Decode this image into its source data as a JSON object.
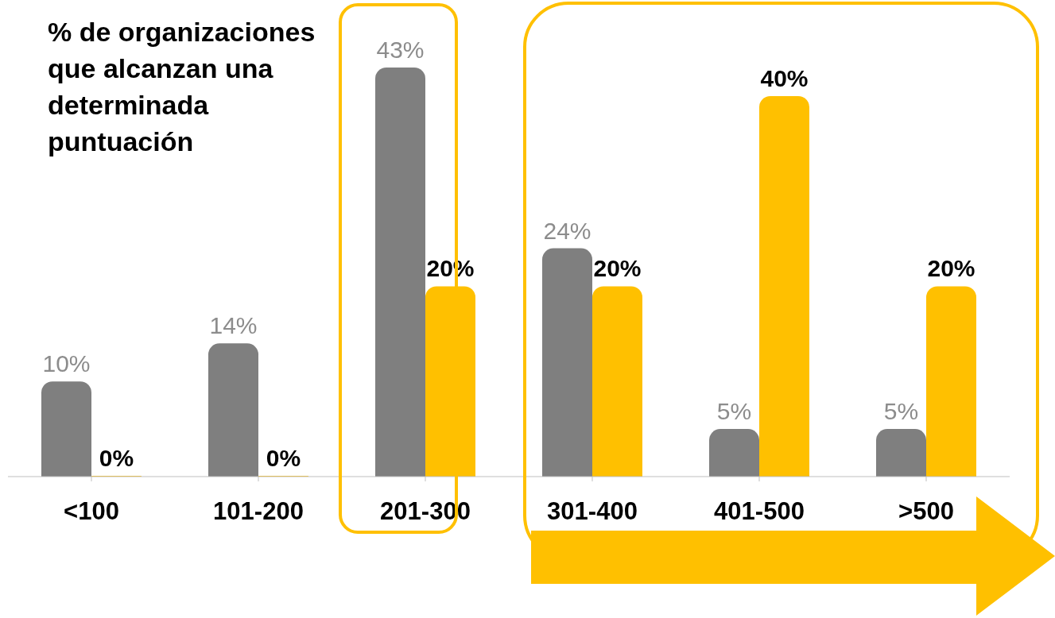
{
  "chart_data": {
    "type": "bar",
    "title": "% de organizaciones que alcanzan una determinada puntuación",
    "categories": [
      "<100",
      "101-200",
      "201-300",
      "301-400",
      "401-500",
      ">500"
    ],
    "series": [
      {
        "color": "#7f7f7f",
        "values": [
          10,
          14,
          43,
          24,
          5,
          5
        ],
        "value_labels": [
          "10%",
          "14%",
          "43%",
          "24%",
          "5%",
          "5%"
        ]
      },
      {
        "color": "#ffc000",
        "values": [
          0,
          0,
          20,
          20,
          40,
          20
        ],
        "value_labels": [
          "0%",
          "0%",
          "20%",
          "20%",
          "40%",
          "20%"
        ]
      }
    ],
    "tick_labels": "x",
    "grid": false,
    "legend": false
  }
}
